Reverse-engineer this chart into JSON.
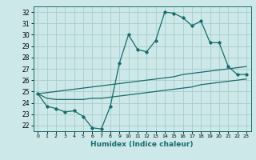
{
  "xlabel": "Humidex (Indice chaleur)",
  "background_color": "#cce8e8",
  "grid_color": "#aacccc",
  "line_color": "#1a6b6b",
  "xlim": [
    -0.5,
    23.5
  ],
  "ylim": [
    21.5,
    32.5
  ],
  "xticks": [
    0,
    1,
    2,
    3,
    4,
    5,
    6,
    7,
    8,
    9,
    10,
    11,
    12,
    13,
    14,
    15,
    16,
    17,
    18,
    19,
    20,
    21,
    22,
    23
  ],
  "yticks": [
    22,
    23,
    24,
    25,
    26,
    27,
    28,
    29,
    30,
    31,
    32
  ],
  "main_line": [
    24.8,
    23.7,
    23.5,
    23.2,
    23.3,
    22.8,
    21.8,
    21.7,
    23.7,
    27.5,
    30.0,
    28.7,
    28.5,
    29.5,
    32.0,
    31.9,
    31.5,
    30.8,
    31.2,
    29.3,
    29.3,
    27.2,
    26.5,
    26.5
  ],
  "line_upper": [
    24.8,
    24.9,
    25.0,
    25.1,
    25.2,
    25.3,
    25.4,
    25.5,
    25.6,
    25.7,
    25.8,
    25.9,
    26.0,
    26.1,
    26.2,
    26.3,
    26.5,
    26.6,
    26.7,
    26.8,
    26.9,
    27.0,
    27.1,
    27.2
  ],
  "line_lower": [
    24.8,
    24.4,
    24.3,
    24.3,
    24.3,
    24.3,
    24.4,
    24.4,
    24.5,
    24.6,
    24.7,
    24.8,
    24.9,
    25.0,
    25.1,
    25.2,
    25.3,
    25.4,
    25.6,
    25.7,
    25.8,
    25.9,
    26.0,
    26.1
  ]
}
